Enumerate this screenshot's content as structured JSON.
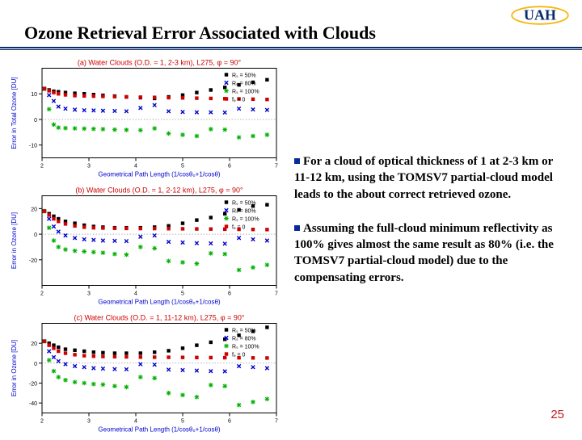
{
  "logo": {
    "text": "UAH",
    "fill": "#0a2a6b",
    "accent": "#f5b70f"
  },
  "title": "Ozone Retrieval Error Associated with Clouds",
  "page_number": "25",
  "bullets": [
    "For a cloud of optical thickness of 1 at 2-3 km or 11-12 km, using the TOMSV7 partial-cloud model leads to the about correct retrieved ozone.",
    "Assuming the full-cloud minimum reflectivity as 100% gives almost the same result as 80% (i.e. the TOMSV7 partial-cloud model) due to the compensating errors."
  ],
  "chart_common": {
    "x_label": "Geometrical Path Length (1/cosθ₀+1/cosθ)",
    "x_ticks": [
      2,
      3,
      4,
      5,
      6,
      7
    ],
    "xlim": [
      2,
      7
    ],
    "legend": [
      {
        "label": "Rₛ = 50%",
        "color": "#000000",
        "marker": "square"
      },
      {
        "label": "Rₛ = 80%",
        "color": "#0000cc",
        "marker": "x"
      },
      {
        "label": "Rₛ = 100%",
        "color": "#00b000",
        "marker": "star"
      },
      {
        "label": "fₑ = 0",
        "color": "#d00000",
        "marker": "square"
      }
    ],
    "grid_color": "#000000",
    "background": "#ffffff"
  },
  "charts": [
    {
      "title": "(a) Water Clouds (O.D. = 1, 2-3 km), L275, φ = 90°",
      "y_label": "Error in Total Ozone [DU]",
      "ylim": [
        -15,
        20
      ],
      "y_ticks": [
        -10,
        0,
        10
      ],
      "series": {
        "black": [
          [
            2.05,
            12
          ],
          [
            2.15,
            11.5
          ],
          [
            2.25,
            11
          ],
          [
            2.35,
            10.8
          ],
          [
            2.5,
            10.5
          ],
          [
            2.7,
            10.2
          ],
          [
            2.9,
            10
          ],
          [
            3.1,
            9.7
          ],
          [
            3.3,
            9.4
          ],
          [
            3.55,
            9.1
          ],
          [
            3.8,
            8.8
          ],
          [
            4.1,
            8.5
          ],
          [
            4.4,
            8.2
          ],
          [
            4.7,
            8.8
          ],
          [
            5,
            9.5
          ],
          [
            5.3,
            10.5
          ],
          [
            5.6,
            11.5
          ],
          [
            5.9,
            12.5
          ],
          [
            6.2,
            13.5
          ],
          [
            6.5,
            14.5
          ],
          [
            6.8,
            15.5
          ]
        ],
        "blue": [
          [
            2.05,
            12
          ],
          [
            2.15,
            9.5
          ],
          [
            2.25,
            7.2
          ],
          [
            2.35,
            5
          ],
          [
            2.5,
            4.2
          ],
          [
            2.7,
            3.8
          ],
          [
            2.9,
            3.6
          ],
          [
            3.1,
            3.5
          ],
          [
            3.3,
            3.4
          ],
          [
            3.55,
            3.3
          ],
          [
            3.8,
            3.2
          ],
          [
            4.1,
            4.5
          ],
          [
            4.4,
            5.6
          ],
          [
            4.7,
            3.2
          ],
          [
            5,
            2.9
          ],
          [
            5.3,
            2.8
          ],
          [
            5.6,
            2.8
          ],
          [
            5.9,
            2.7
          ],
          [
            6.2,
            4.2
          ],
          [
            6.5,
            3.9
          ],
          [
            6.8,
            3.7
          ]
        ],
        "green": [
          [
            2.05,
            12
          ],
          [
            2.15,
            4
          ],
          [
            2.25,
            -2
          ],
          [
            2.35,
            -3.2
          ],
          [
            2.5,
            -3.4
          ],
          [
            2.7,
            -3.5
          ],
          [
            2.9,
            -3.6
          ],
          [
            3.1,
            -3.7
          ],
          [
            3.3,
            -3.8
          ],
          [
            3.55,
            -4
          ],
          [
            3.8,
            -4.1
          ],
          [
            4.1,
            -4.2
          ],
          [
            4.4,
            -3.5
          ],
          [
            4.7,
            -5.5
          ],
          [
            5,
            -6
          ],
          [
            5.3,
            -6.5
          ],
          [
            5.6,
            -3.8
          ],
          [
            5.9,
            -4
          ],
          [
            6.2,
            -7
          ],
          [
            6.5,
            -6.5
          ],
          [
            6.8,
            -6
          ]
        ],
        "red": [
          [
            2.05,
            12
          ],
          [
            2.15,
            11.2
          ],
          [
            2.25,
            10.5
          ],
          [
            2.35,
            10.0
          ],
          [
            2.5,
            9.6
          ],
          [
            2.7,
            9.3
          ],
          [
            2.9,
            9.2
          ],
          [
            3.1,
            9.1
          ],
          [
            3.3,
            9
          ],
          [
            3.55,
            8.9
          ],
          [
            3.8,
            8.8
          ],
          [
            4.1,
            8.7
          ],
          [
            4.4,
            8.6
          ],
          [
            4.7,
            8.5
          ],
          [
            5,
            8.4
          ],
          [
            5.3,
            8.3
          ],
          [
            5.6,
            8.2
          ],
          [
            5.9,
            8.1
          ],
          [
            6.2,
            8.0
          ],
          [
            6.5,
            7.9
          ],
          [
            6.8,
            7.8
          ]
        ]
      }
    },
    {
      "title": "(b) Water Clouds (O.D. = 1, 2-12 km), L275, φ = 90°",
      "y_label": "Error in Ozone [DU]",
      "ylim": [
        -40,
        30
      ],
      "y_ticks": [
        -20,
        0,
        20
      ],
      "series": {
        "black": [
          [
            2.05,
            18
          ],
          [
            2.15,
            16
          ],
          [
            2.25,
            14
          ],
          [
            2.35,
            12
          ],
          [
            2.5,
            10
          ],
          [
            2.7,
            8.5
          ],
          [
            2.9,
            7
          ],
          [
            3.1,
            6
          ],
          [
            3.3,
            5.5
          ],
          [
            3.55,
            5
          ],
          [
            3.8,
            5
          ],
          [
            4.1,
            5
          ],
          [
            4.4,
            5.5
          ],
          [
            4.7,
            6.5
          ],
          [
            5,
            8.5
          ],
          [
            5.3,
            11
          ],
          [
            5.6,
            13
          ],
          [
            5.9,
            16
          ],
          [
            6.2,
            19
          ],
          [
            6.5,
            22
          ],
          [
            6.8,
            23
          ]
        ],
        "blue": [
          [
            2.05,
            18
          ],
          [
            2.15,
            12
          ],
          [
            2.25,
            6
          ],
          [
            2.35,
            2
          ],
          [
            2.5,
            -1
          ],
          [
            2.7,
            -3
          ],
          [
            2.9,
            -4
          ],
          [
            3.1,
            -4.5
          ],
          [
            3.3,
            -5
          ],
          [
            3.55,
            -5.2
          ],
          [
            3.8,
            -5.4
          ],
          [
            4.1,
            -2
          ],
          [
            4.4,
            -1
          ],
          [
            4.7,
            -6
          ],
          [
            5,
            -6.5
          ],
          [
            5.3,
            -7
          ],
          [
            5.6,
            -7.2
          ],
          [
            5.9,
            -7.4
          ],
          [
            6.2,
            -3
          ],
          [
            6.5,
            -4
          ],
          [
            6.8,
            -5
          ]
        ],
        "green": [
          [
            2.05,
            18
          ],
          [
            2.15,
            5
          ],
          [
            2.25,
            -5
          ],
          [
            2.35,
            -10
          ],
          [
            2.5,
            -12
          ],
          [
            2.7,
            -13
          ],
          [
            2.9,
            -13.5
          ],
          [
            3.1,
            -14
          ],
          [
            3.3,
            -14.5
          ],
          [
            3.55,
            -15.5
          ],
          [
            3.8,
            -16
          ],
          [
            4.1,
            -10
          ],
          [
            4.4,
            -11
          ],
          [
            4.7,
            -21
          ],
          [
            5,
            -22
          ],
          [
            5.3,
            -23
          ],
          [
            5.6,
            -15
          ],
          [
            5.9,
            -15.5
          ],
          [
            6.2,
            -28
          ],
          [
            6.5,
            -26
          ],
          [
            6.8,
            -24
          ]
        ],
        "red": [
          [
            2.05,
            18
          ],
          [
            2.15,
            15
          ],
          [
            2.25,
            12
          ],
          [
            2.35,
            10
          ],
          [
            2.5,
            8
          ],
          [
            2.7,
            6.5
          ],
          [
            2.9,
            5.5
          ],
          [
            3.1,
            5
          ],
          [
            3.3,
            4.8
          ],
          [
            3.55,
            4.6
          ],
          [
            3.8,
            4.5
          ],
          [
            4.1,
            4.4
          ],
          [
            4.4,
            4.4
          ],
          [
            4.7,
            4.3
          ],
          [
            5,
            4.2
          ],
          [
            5.3,
            4.1
          ],
          [
            5.6,
            4.0
          ],
          [
            5.9,
            3.9
          ],
          [
            6.2,
            3.8
          ],
          [
            6.5,
            3.7
          ],
          [
            6.8,
            3.6
          ]
        ]
      }
    },
    {
      "title": "(c) Water Clouds (O.D. = 1, 11-12 km), L275, φ = 90°",
      "y_label": "Error in Ozone [DU]",
      "ylim": [
        -50,
        40
      ],
      "y_ticks": [
        -40,
        -20,
        0,
        20
      ],
      "series": {
        "black": [
          [
            2.05,
            22
          ],
          [
            2.15,
            20
          ],
          [
            2.25,
            18
          ],
          [
            2.35,
            16
          ],
          [
            2.5,
            14
          ],
          [
            2.7,
            13
          ],
          [
            2.9,
            12
          ],
          [
            3.1,
            11
          ],
          [
            3.3,
            10.5
          ],
          [
            3.55,
            10
          ],
          [
            3.8,
            10
          ],
          [
            4.1,
            10
          ],
          [
            4.4,
            11
          ],
          [
            4.7,
            12.5
          ],
          [
            5,
            15
          ],
          [
            5.3,
            18
          ],
          [
            5.6,
            21
          ],
          [
            5.9,
            24
          ],
          [
            6.2,
            28
          ],
          [
            6.5,
            32
          ],
          [
            6.8,
            36
          ]
        ],
        "blue": [
          [
            2.05,
            22
          ],
          [
            2.15,
            12
          ],
          [
            2.25,
            6
          ],
          [
            2.35,
            2
          ],
          [
            2.5,
            -1
          ],
          [
            2.7,
            -3
          ],
          [
            2.9,
            -4
          ],
          [
            3.1,
            -5
          ],
          [
            3.3,
            -5.5
          ],
          [
            3.55,
            -6
          ],
          [
            3.8,
            -6.2
          ],
          [
            4.1,
            -1
          ],
          [
            4.4,
            -1.5
          ],
          [
            4.7,
            -6.5
          ],
          [
            5,
            -7
          ],
          [
            5.3,
            -7.5
          ],
          [
            5.6,
            -8
          ],
          [
            5.9,
            -8.2
          ],
          [
            6.2,
            -3
          ],
          [
            6.5,
            -4
          ],
          [
            6.8,
            -5
          ]
        ],
        "green": [
          [
            2.05,
            22
          ],
          [
            2.15,
            3
          ],
          [
            2.25,
            -8
          ],
          [
            2.35,
            -14
          ],
          [
            2.5,
            -17
          ],
          [
            2.7,
            -19
          ],
          [
            2.9,
            -20
          ],
          [
            3.1,
            -21
          ],
          [
            3.3,
            -21.5
          ],
          [
            3.55,
            -23
          ],
          [
            3.8,
            -24
          ],
          [
            4.1,
            -14
          ],
          [
            4.4,
            -15
          ],
          [
            4.7,
            -30
          ],
          [
            5,
            -32
          ],
          [
            5.3,
            -34
          ],
          [
            5.6,
            -22
          ],
          [
            5.9,
            -23
          ],
          [
            6.2,
            -42
          ],
          [
            6.5,
            -39
          ],
          [
            6.8,
            -36
          ]
        ],
        "red": [
          [
            2.05,
            22
          ],
          [
            2.15,
            18
          ],
          [
            2.25,
            15
          ],
          [
            2.35,
            12
          ],
          [
            2.5,
            10
          ],
          [
            2.7,
            8.5
          ],
          [
            2.9,
            7.5
          ],
          [
            3.1,
            7
          ],
          [
            3.3,
            6.7
          ],
          [
            3.55,
            6.5
          ],
          [
            3.8,
            6.3
          ],
          [
            4.1,
            6.1
          ],
          [
            4.4,
            6.0
          ],
          [
            4.7,
            5.9
          ],
          [
            5,
            5.8
          ],
          [
            5.3,
            5.7
          ],
          [
            5.6,
            5.6
          ],
          [
            5.9,
            5.5
          ],
          [
            6.2,
            5.4
          ],
          [
            6.5,
            5.3
          ],
          [
            6.8,
            5.2
          ]
        ]
      }
    }
  ]
}
